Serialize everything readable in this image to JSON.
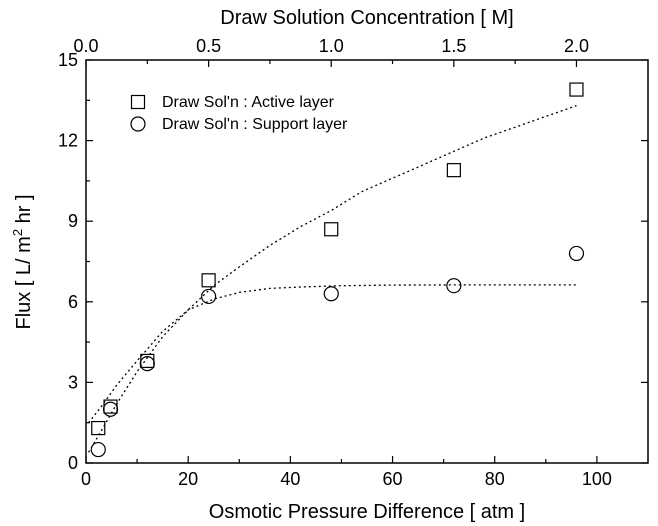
{
  "chart_data": {
    "type": "scatter",
    "xlabel": "Osmotic Pressure Difference [ atm ]",
    "ylabel_parts": [
      "Flux [ L/ m",
      "2",
      " hr ]"
    ],
    "x2label": "Draw Solution Concentration [ M]",
    "xlim": [
      0,
      110
    ],
    "ylim": [
      0,
      15
    ],
    "x2lim": [
      0.0,
      2.0
    ],
    "x_ticks": [
      "0",
      "20",
      "40",
      "60",
      "80",
      "100"
    ],
    "x_tick_values": [
      0,
      20,
      40,
      60,
      80,
      100
    ],
    "y_ticks": [
      "0",
      "3",
      "6",
      "9",
      "12",
      "15"
    ],
    "y_tick_values": [
      0,
      3,
      6,
      9,
      12,
      15
    ],
    "x2_ticks": [
      "0.0",
      "0.5",
      "1.0",
      "1.5",
      "2.0"
    ],
    "x2_tick_values": [
      0.0,
      0.5,
      1.0,
      1.5,
      2.0
    ],
    "legend_position": "top-left",
    "series": [
      {
        "name": "Draw Sol'n : Active layer",
        "marker": "square",
        "x": [
          2.4,
          4.8,
          12.0,
          24.0,
          48.0,
          72.0,
          96.0
        ],
        "y": [
          1.3,
          2.1,
          3.8,
          6.8,
          8.7,
          10.9,
          13.9
        ],
        "fit_x": [
          0.5,
          3,
          6,
          10,
          15,
          20,
          25,
          30,
          36,
          42,
          48,
          54,
          60,
          66,
          72,
          78,
          84,
          90,
          96
        ],
        "fit_y": [
          0.4,
          1.2,
          2.2,
          3.4,
          4.7,
          5.7,
          6.6,
          7.3,
          8.1,
          8.8,
          9.4,
          10.1,
          10.6,
          11.1,
          11.6,
          12.1,
          12.5,
          12.9,
          13.3
        ]
      },
      {
        "name": "Draw Sol'n : Support layer",
        "marker": "circle",
        "x": [
          2.4,
          4.8,
          12.0,
          24.0,
          48.0,
          72.0,
          96.0
        ],
        "y": [
          0.5,
          2.0,
          3.7,
          6.2,
          6.3,
          6.6,
          7.8
        ],
        "fit_x": [
          0.5,
          3,
          6,
          10,
          15,
          20,
          25,
          30,
          36,
          42,
          50,
          60,
          72,
          84,
          96
        ],
        "fit_y": [
          1.5,
          2.1,
          2.9,
          3.8,
          4.9,
          5.7,
          6.1,
          6.35,
          6.5,
          6.55,
          6.6,
          6.62,
          6.63,
          6.63,
          6.63
        ]
      }
    ]
  }
}
